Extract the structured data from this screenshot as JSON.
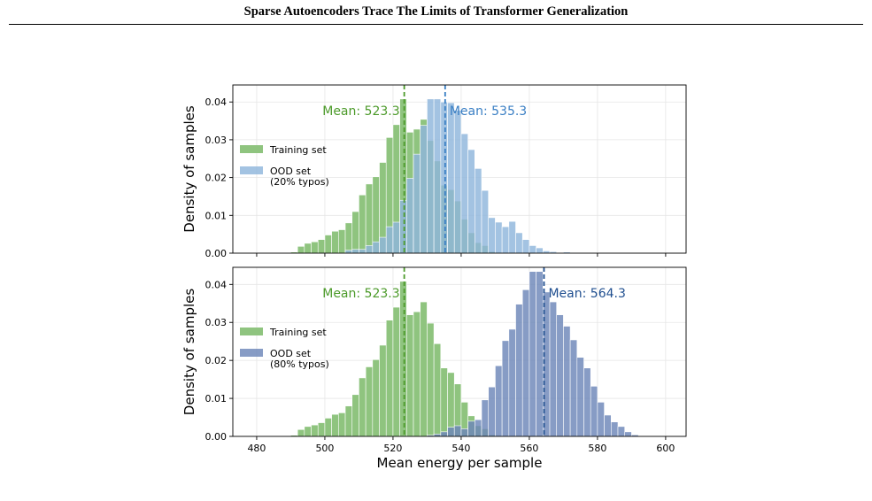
{
  "header": {
    "running_title": "Sparse Autoencoders Trace The Limits of Transformer Generalization"
  },
  "colors": {
    "training": "#4c9a2a",
    "training_fill": "#8fc47f",
    "ood20_fill": "#8fb6dc",
    "ood20_line": "#3a7fc4",
    "ood80_fill": "#6c86b8",
    "ood80_line": "#1f4e8f",
    "overlap20": "#3f8f84",
    "overlap80": "#3f7a72"
  },
  "chart_data": [
    {
      "type": "bar",
      "panel": "top",
      "xlabel": "",
      "ylabel": "Density of samples",
      "xlim": [
        473,
        606
      ],
      "ylim": [
        0,
        0.0445
      ],
      "xticks": [
        480,
        500,
        520,
        540,
        560,
        580,
        600
      ],
      "yticks": [
        0.0,
        0.01,
        0.02,
        0.03,
        0.04
      ],
      "ytick_labels": [
        "0.00",
        "0.01",
        "0.02",
        "0.03",
        "0.04"
      ],
      "grid": true,
      "legend_position": "center-left",
      "bin_width": 2,
      "series": [
        {
          "name": "Training set",
          "color_key": "training_fill",
          "bins": [
            {
              "start": 490,
              "density": 0.0003
            },
            {
              "start": 492,
              "density": 0.0018
            },
            {
              "start": 494,
              "density": 0.0026
            },
            {
              "start": 496,
              "density": 0.003
            },
            {
              "start": 498,
              "density": 0.0036
            },
            {
              "start": 500,
              "density": 0.0048
            },
            {
              "start": 502,
              "density": 0.0058
            },
            {
              "start": 504,
              "density": 0.0062
            },
            {
              "start": 506,
              "density": 0.008
            },
            {
              "start": 508,
              "density": 0.011
            },
            {
              "start": 510,
              "density": 0.0154
            },
            {
              "start": 512,
              "density": 0.0183
            },
            {
              "start": 514,
              "density": 0.0202
            },
            {
              "start": 516,
              "density": 0.024
            },
            {
              "start": 518,
              "density": 0.0306
            },
            {
              "start": 520,
              "density": 0.034
            },
            {
              "start": 522,
              "density": 0.0408
            },
            {
              "start": 524,
              "density": 0.032
            },
            {
              "start": 526,
              "density": 0.0328
            },
            {
              "start": 528,
              "density": 0.0354
            },
            {
              "start": 530,
              "density": 0.0298
            },
            {
              "start": 532,
              "density": 0.0244
            },
            {
              "start": 534,
              "density": 0.018
            },
            {
              "start": 536,
              "density": 0.0168
            },
            {
              "start": 538,
              "density": 0.0138
            },
            {
              "start": 540,
              "density": 0.009
            },
            {
              "start": 542,
              "density": 0.0054
            },
            {
              "start": 544,
              "density": 0.0028
            },
            {
              "start": 546,
              "density": 0.002
            },
            {
              "start": 548,
              "density": 0.0004
            }
          ]
        },
        {
          "name": "OOD set\n(20% typos)",
          "color_key": "ood20_fill",
          "bins": [
            {
              "start": 506,
              "density": 0.0008
            },
            {
              "start": 508,
              "density": 0.001
            },
            {
              "start": 510,
              "density": 0.001
            },
            {
              "start": 512,
              "density": 0.002
            },
            {
              "start": 514,
              "density": 0.003
            },
            {
              "start": 516,
              "density": 0.0042
            },
            {
              "start": 518,
              "density": 0.007
            },
            {
              "start": 520,
              "density": 0.0082
            },
            {
              "start": 522,
              "density": 0.014
            },
            {
              "start": 524,
              "density": 0.0198
            },
            {
              "start": 526,
              "density": 0.0262
            },
            {
              "start": 528,
              "density": 0.0338
            },
            {
              "start": 530,
              "density": 0.0408
            },
            {
              "start": 532,
              "density": 0.0408
            },
            {
              "start": 534,
              "density": 0.04
            },
            {
              "start": 536,
              "density": 0.0398
            },
            {
              "start": 538,
              "density": 0.0378
            },
            {
              "start": 540,
              "density": 0.0316
            },
            {
              "start": 542,
              "density": 0.0274
            },
            {
              "start": 544,
              "density": 0.0224
            },
            {
              "start": 546,
              "density": 0.0166
            },
            {
              "start": 548,
              "density": 0.0094
            },
            {
              "start": 550,
              "density": 0.0082
            },
            {
              "start": 552,
              "density": 0.007
            },
            {
              "start": 554,
              "density": 0.0084
            },
            {
              "start": 556,
              "density": 0.0054
            },
            {
              "start": 558,
              "density": 0.0036
            },
            {
              "start": 560,
              "density": 0.002
            },
            {
              "start": 562,
              "density": 0.0014
            },
            {
              "start": 564,
              "density": 0.0006
            },
            {
              "start": 566,
              "density": 0.0004
            },
            {
              "start": 570,
              "density": 0.0003
            }
          ]
        }
      ],
      "annotations": [
        {
          "text": "Mean: 523.3",
          "x": 523.3,
          "color_key": "training",
          "side": "left"
        },
        {
          "text": "Mean: 535.3",
          "x": 535.3,
          "color_key": "ood20_line",
          "side": "right"
        }
      ]
    },
    {
      "type": "bar",
      "panel": "bottom",
      "xlabel": "Mean energy per sample",
      "ylabel": "Density of samples",
      "xlim": [
        473,
        606
      ],
      "ylim": [
        0,
        0.0445
      ],
      "xticks": [
        480,
        500,
        520,
        540,
        560,
        580,
        600
      ],
      "yticks": [
        0.0,
        0.01,
        0.02,
        0.03,
        0.04
      ],
      "ytick_labels": [
        "0.00",
        "0.01",
        "0.02",
        "0.03",
        "0.04"
      ],
      "grid": true,
      "legend_position": "center-left",
      "bin_width": 2,
      "series": [
        {
          "name": "Training set",
          "color_key": "training_fill",
          "bins": [
            {
              "start": 490,
              "density": 0.0003
            },
            {
              "start": 492,
              "density": 0.0018
            },
            {
              "start": 494,
              "density": 0.0026
            },
            {
              "start": 496,
              "density": 0.003
            },
            {
              "start": 498,
              "density": 0.0036
            },
            {
              "start": 500,
              "density": 0.0048
            },
            {
              "start": 502,
              "density": 0.0058
            },
            {
              "start": 504,
              "density": 0.0062
            },
            {
              "start": 506,
              "density": 0.008
            },
            {
              "start": 508,
              "density": 0.011
            },
            {
              "start": 510,
              "density": 0.0154
            },
            {
              "start": 512,
              "density": 0.0183
            },
            {
              "start": 514,
              "density": 0.0202
            },
            {
              "start": 516,
              "density": 0.024
            },
            {
              "start": 518,
              "density": 0.0306
            },
            {
              "start": 520,
              "density": 0.034
            },
            {
              "start": 522,
              "density": 0.0408
            },
            {
              "start": 524,
              "density": 0.032
            },
            {
              "start": 526,
              "density": 0.0328
            },
            {
              "start": 528,
              "density": 0.0354
            },
            {
              "start": 530,
              "density": 0.0298
            },
            {
              "start": 532,
              "density": 0.0244
            },
            {
              "start": 534,
              "density": 0.018
            },
            {
              "start": 536,
              "density": 0.0168
            },
            {
              "start": 538,
              "density": 0.0138
            },
            {
              "start": 540,
              "density": 0.009
            },
            {
              "start": 542,
              "density": 0.0054
            },
            {
              "start": 544,
              "density": 0.0028
            },
            {
              "start": 546,
              "density": 0.002
            },
            {
              "start": 548,
              "density": 0.0004
            }
          ]
        },
        {
          "name": "OOD set\n(80% typos)",
          "color_key": "ood80_fill",
          "bins": [
            {
              "start": 530,
              "density": 0.0003
            },
            {
              "start": 532,
              "density": 0.0006
            },
            {
              "start": 534,
              "density": 0.0012
            },
            {
              "start": 536,
              "density": 0.0024
            },
            {
              "start": 538,
              "density": 0.0028
            },
            {
              "start": 540,
              "density": 0.002
            },
            {
              "start": 542,
              "density": 0.004
            },
            {
              "start": 544,
              "density": 0.0044
            },
            {
              "start": 546,
              "density": 0.0096
            },
            {
              "start": 548,
              "density": 0.013
            },
            {
              "start": 550,
              "density": 0.0186
            },
            {
              "start": 552,
              "density": 0.0252
            },
            {
              "start": 554,
              "density": 0.0282
            },
            {
              "start": 556,
              "density": 0.0348
            },
            {
              "start": 558,
              "density": 0.0386
            },
            {
              "start": 560,
              "density": 0.0434
            },
            {
              "start": 562,
              "density": 0.0434
            },
            {
              "start": 564,
              "density": 0.038
            },
            {
              "start": 566,
              "density": 0.0354
            },
            {
              "start": 568,
              "density": 0.032
            },
            {
              "start": 570,
              "density": 0.029
            },
            {
              "start": 572,
              "density": 0.0254
            },
            {
              "start": 574,
              "density": 0.0208
            },
            {
              "start": 576,
              "density": 0.018
            },
            {
              "start": 578,
              "density": 0.0132
            },
            {
              "start": 580,
              "density": 0.009
            },
            {
              "start": 582,
              "density": 0.0056
            },
            {
              "start": 584,
              "density": 0.0038
            },
            {
              "start": 586,
              "density": 0.0026
            },
            {
              "start": 588,
              "density": 0.0012
            },
            {
              "start": 590,
              "density": 0.0004
            }
          ]
        }
      ],
      "annotations": [
        {
          "text": "Mean: 523.3",
          "x": 523.3,
          "color_key": "training",
          "side": "left"
        },
        {
          "text": "Mean: 564.3",
          "x": 564.3,
          "color_key": "ood80_line",
          "side": "right"
        }
      ]
    }
  ],
  "caption": {
    "bold_part": "",
    "text": ""
  }
}
